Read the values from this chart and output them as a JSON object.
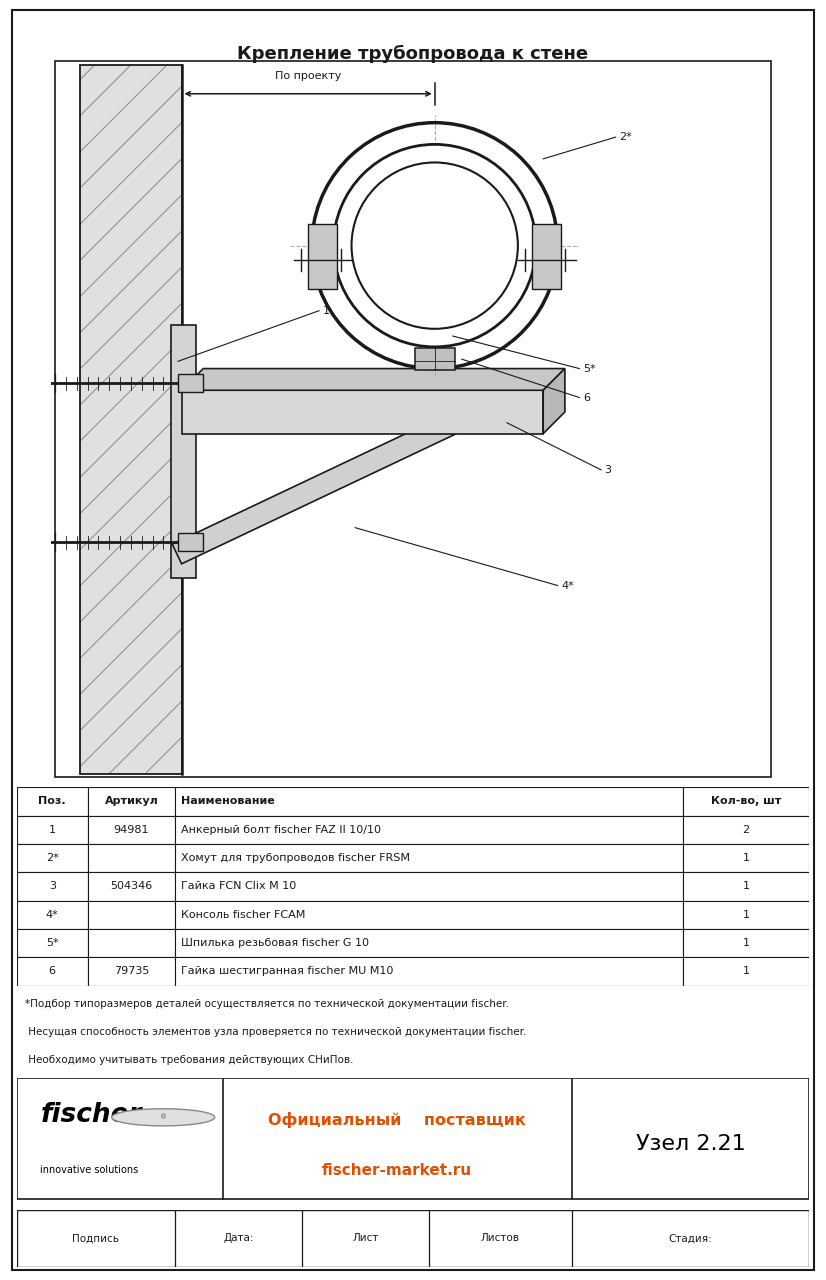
{
  "title": "Крепление трубопровода к стене",
  "title_fontsize": 13,
  "bg_color": "#ffffff",
  "line_color": "#1a1a1a",
  "table_rows": [
    [
      "1",
      "94981",
      "Анкерный болт fischer FAZ II 10/10",
      "2"
    ],
    [
      "2*",
      "",
      "Хомут для трубопроводов fischer FRSM",
      "1"
    ],
    [
      "3",
      "504346",
      "Гайка FCN Clix M 10",
      "1"
    ],
    [
      "4*",
      "",
      "Консоль fischer FCAM",
      "1"
    ],
    [
      "5*",
      "",
      "Шпилька резьбовая fischer G 10",
      "1"
    ],
    [
      "6",
      "79735",
      "Гайка шестигранная fischer MU M10",
      "1"
    ]
  ],
  "table_headers": [
    "Поз.",
    "Артикул",
    "Наименование",
    "Кол-во, шт"
  ],
  "footnote1": "*Подбор типоразмеров деталей осуществляется по технической документации fischer.",
  "footnote2": " Несущая способность элементов узла проверяется по технической документации fischer.",
  "footnote3": " Необходимо учитывать требования действующих СНиПов.",
  "footer_center1": "Официальный    поставщик",
  "footer_center2": "fischer-market.ru",
  "footer_right": "Узел 2.21",
  "footer_bottom": [
    "Подпись",
    "Дата:",
    "Лист",
    "Листов",
    "Стадия:"
  ],
  "orange_color": "#e05000",
  "draw_xlim": [
    0,
    100
  ],
  "draw_ylim": [
    0,
    110
  ]
}
